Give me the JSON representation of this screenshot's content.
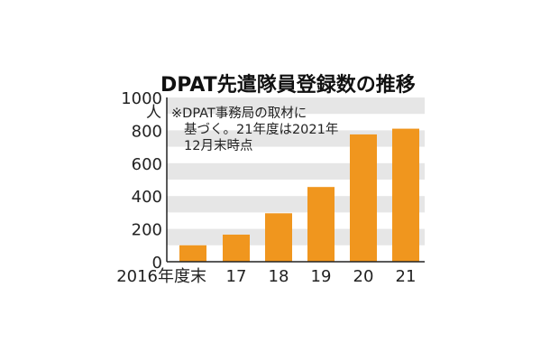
{
  "chart_data": {
    "type": "bar",
    "title": "DPAT先遣隊員登録数の推移",
    "ylabel": "人",
    "note_lines": [
      "※DPAT事務局の取材に",
      "基づく。21年度は2021年",
      "12月末時点"
    ],
    "categories": [
      "2016年度末",
      "17",
      "18",
      "19",
      "20",
      "21"
    ],
    "values": [
      100,
      165,
      295,
      455,
      775,
      810
    ],
    "ylim": [
      0,
      1000
    ],
    "yticks": [
      0,
      200,
      400,
      600,
      800,
      1000
    ],
    "bar_color": "#f0961e",
    "band_color": "#e6e6e6",
    "grid": false
  }
}
